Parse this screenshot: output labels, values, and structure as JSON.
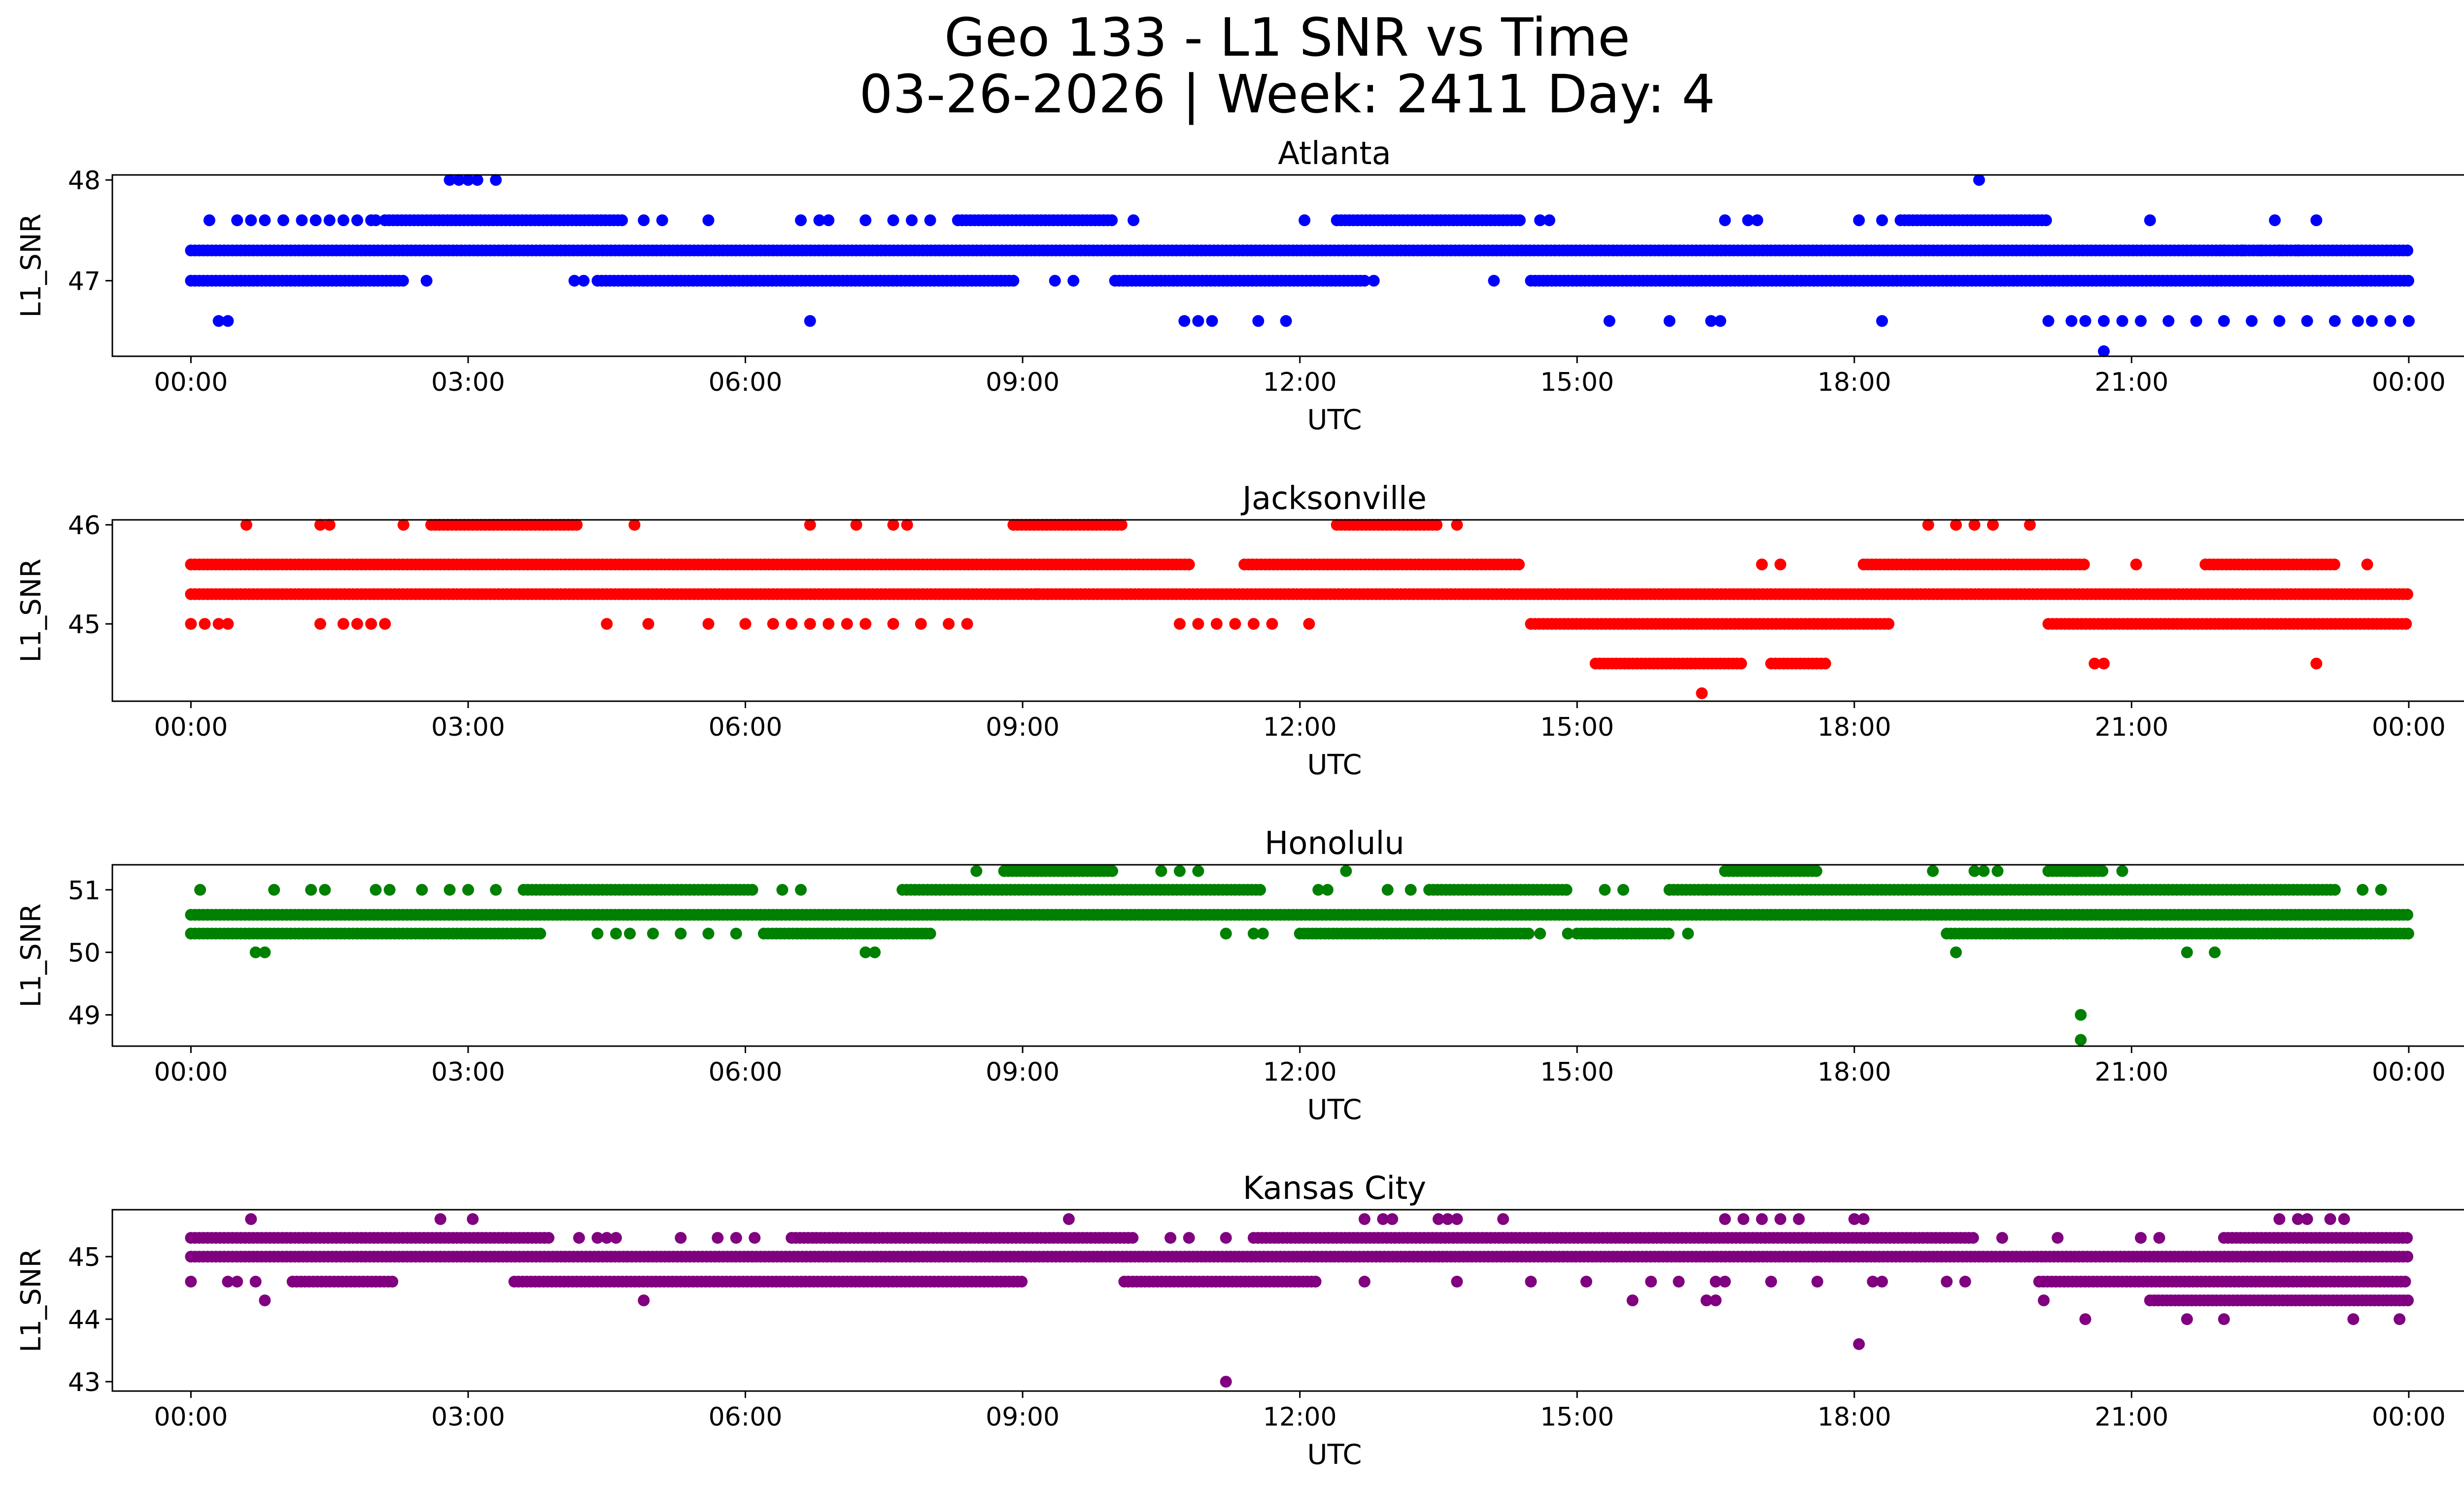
{
  "figure": {
    "title_line1": "Geo 133 - L1 SNR vs Time",
    "title_line2": "03-26-2026 | Week: 2411 Day: 4"
  },
  "chart_data": [
    {
      "type": "scatter",
      "title": "Atlanta",
      "xlabel": "UTC",
      "ylabel": "L1_SNR",
      "color": "#0000ff",
      "xlim_hours": [
        -0.85,
        25.6
      ],
      "ylim": [
        46.25,
        48.05
      ],
      "x_ticks": [
        0,
        3,
        6,
        9,
        12,
        15,
        18,
        21,
        24
      ],
      "x_tick_labels": [
        "00:00",
        "03:00",
        "06:00",
        "09:00",
        "12:00",
        "15:00",
        "18:00",
        "21:00",
        "00:00"
      ],
      "y_ticks": [
        47,
        48
      ],
      "y_tick_labels": [
        "47",
        "48"
      ],
      "bands": [
        {
          "y": 47.3,
          "segments": [
            [
              0.0,
              24.0
            ]
          ]
        },
        {
          "y": 47.0,
          "segments": [
            [
              0.0,
              2.3
            ],
            [
              4.4,
              8.9
            ],
            [
              10.0,
              12.7
            ],
            [
              14.5,
              24.0
            ]
          ]
        },
        {
          "y": 47.6,
          "segments": [
            [
              2.1,
              4.7
            ],
            [
              8.3,
              10.0
            ],
            [
              12.4,
              14.4
            ],
            [
              18.5,
              20.1
            ]
          ]
        }
      ],
      "sparse": [
        {
          "y": 47.6,
          "x": [
            0.2,
            0.5,
            0.65,
            0.8,
            1.0,
            1.2,
            1.35,
            1.5,
            1.65,
            1.8,
            1.95,
            2.0,
            4.9,
            5.1,
            5.6,
            6.6,
            6.8,
            6.9,
            7.3,
            7.6,
            7.8,
            8.0,
            10.2,
            12.05,
            14.6,
            14.7,
            16.6,
            16.85,
            16.95,
            18.05,
            18.3,
            21.2,
            22.55,
            23.0
          ]
        },
        {
          "y": 47.0,
          "x": [
            2.55,
            4.15,
            4.25,
            9.35,
            9.55,
            12.8,
            14.1
          ]
        },
        {
          "y": 46.6,
          "x": [
            0.3,
            0.4,
            6.7,
            10.75,
            10.9,
            11.05,
            11.55,
            11.85,
            15.35,
            16.0,
            16.45,
            16.55,
            18.3,
            20.1,
            20.35,
            20.5,
            20.7,
            20.9,
            21.1,
            21.4,
            21.7,
            22.0,
            22.3,
            22.6,
            22.9,
            23.2,
            23.45,
            23.6,
            23.8,
            24.0
          ]
        },
        {
          "y": 47.3,
          "x": [
            22.0,
            22.2,
            22.4,
            22.6,
            22.8
          ]
        },
        {
          "y": 48.0,
          "x": [
            2.8,
            2.9,
            3.0,
            3.1,
            3.3,
            19.35
          ]
        },
        {
          "y": 46.3,
          "x": [
            20.7
          ]
        }
      ]
    },
    {
      "type": "scatter",
      "title": "Jacksonville",
      "xlabel": "UTC",
      "ylabel": "L1_SNR",
      "color": "#ff0000",
      "xlim_hours": [
        -0.85,
        25.6
      ],
      "ylim": [
        44.22,
        46.05
      ],
      "x_ticks": [
        0,
        3,
        6,
        9,
        12,
        15,
        18,
        21,
        24
      ],
      "x_tick_labels": [
        "00:00",
        "03:00",
        "06:00",
        "09:00",
        "12:00",
        "15:00",
        "18:00",
        "21:00",
        "00:00"
      ],
      "y_ticks": [
        45,
        46
      ],
      "y_tick_labels": [
        "45",
        "46"
      ],
      "bands": [
        {
          "y": 45.3,
          "segments": [
            [
              0.0,
              24.0
            ]
          ]
        },
        {
          "y": 45.6,
          "segments": [
            [
              0.0,
              10.8
            ],
            [
              11.4,
              14.4
            ],
            [
              18.1,
              20.5
            ],
            [
              21.8,
              23.2
            ]
          ]
        },
        {
          "y": 45.0,
          "segments": [
            [
              14.5,
              18.4
            ],
            [
              20.1,
              24.0
            ]
          ]
        },
        {
          "y": 46.0,
          "segments": [
            [
              2.6,
              4.2
            ],
            [
              8.9,
              10.1
            ],
            [
              12.4,
              13.5
            ]
          ]
        },
        {
          "y": 44.6,
          "segments": [
            [
              15.2,
              16.8
            ],
            [
              17.1,
              17.7
            ]
          ]
        }
      ],
      "sparse": [
        {
          "y": 45.0,
          "x": [
            0.0,
            0.15,
            0.3,
            0.4,
            1.4,
            1.65,
            1.8,
            1.95,
            2.1,
            4.5,
            4.95,
            5.6,
            6.0,
            6.3,
            6.5,
            6.7,
            6.9,
            7.1,
            7.3,
            7.6,
            7.9,
            8.2,
            8.4,
            10.7,
            10.9,
            11.1,
            11.3,
            11.5,
            11.7,
            12.1
          ],
          "extra": []
        },
        {
          "y": 46.0,
          "x": [
            0.6,
            1.4,
            1.5,
            2.3,
            4.8,
            6.7,
            7.2,
            7.6,
            7.75,
            13.7,
            18.8,
            19.1,
            19.3,
            19.5,
            19.9
          ]
        },
        {
          "y": 45.3,
          "x": [
            9.15
          ]
        },
        {
          "y": 45.6,
          "x": [
            17.0,
            17.2,
            21.05,
            23.55
          ]
        },
        {
          "y": 44.6,
          "x": [
            20.6,
            20.7,
            23.0
          ]
        },
        {
          "y": 44.3,
          "x": [
            16.35
          ]
        }
      ]
    },
    {
      "type": "scatter",
      "title": "Honolulu",
      "xlabel": "UTC",
      "ylabel": "L1_SNR",
      "color": "#008000",
      "xlim_hours": [
        -0.85,
        25.6
      ],
      "ylim": [
        48.5,
        51.4
      ],
      "x_ticks": [
        0,
        3,
        6,
        9,
        12,
        15,
        18,
        21,
        24
      ],
      "x_tick_labels": [
        "00:00",
        "03:00",
        "06:00",
        "09:00",
        "12:00",
        "15:00",
        "18:00",
        "21:00",
        "00:00"
      ],
      "y_ticks": [
        49,
        50,
        51
      ],
      "y_tick_labels": [
        "49",
        "50",
        "51"
      ],
      "bands": [
        {
          "y": 50.6,
          "segments": [
            [
              0.0,
              24.0
            ]
          ]
        },
        {
          "y": 50.3,
          "segments": [
            [
              0.0,
              3.8
            ],
            [
              6.2,
              8.0
            ],
            [
              12.0,
              14.5
            ],
            [
              15.0,
              16.0
            ],
            [
              19.0,
              24.0
            ]
          ]
        },
        {
          "y": 51.0,
          "segments": [
            [
              3.6,
              6.1
            ],
            [
              7.7,
              11.6
            ],
            [
              13.4,
              14.9
            ],
            [
              16.0,
              23.2
            ]
          ]
        },
        {
          "y": 51.3,
          "segments": [
            [
              8.8,
              10.0
            ],
            [
              16.6,
              17.6
            ],
            [
              20.1,
              20.7
            ]
          ]
        }
      ],
      "sparse": [
        {
          "y": 51.0,
          "x": [
            0.1,
            0.9,
            1.3,
            1.45,
            2.0,
            2.15,
            2.5,
            2.8,
            3.0,
            3.3,
            6.4,
            6.6,
            12.2,
            12.3,
            12.95,
            13.2,
            15.3,
            15.5,
            16.0,
            16.4,
            23.5,
            23.7
          ]
        },
        {
          "y": 50.3,
          "x": [
            4.4,
            4.6,
            4.75,
            5.0,
            5.3,
            5.6,
            5.9,
            11.2,
            11.5,
            11.6,
            14.6,
            14.9,
            15.2,
            16.2,
            20.9,
            21.1
          ]
        },
        {
          "y": 51.3,
          "x": [
            8.5,
            10.5,
            10.7,
            10.9,
            12.5,
            18.85,
            19.3,
            19.4,
            19.55,
            20.4,
            20.9
          ]
        },
        {
          "y": 50.0,
          "x": [
            0.7,
            0.8,
            7.3,
            7.4,
            19.1,
            21.6,
            21.9
          ]
        },
        {
          "y": 49.0,
          "x": [
            20.45
          ]
        },
        {
          "y": 48.6,
          "x": [
            20.45
          ]
        }
      ]
    },
    {
      "type": "scatter",
      "title": "Kansas City",
      "xlabel": "UTC",
      "ylabel": "L1_SNR",
      "color": "#800080",
      "xlim_hours": [
        -0.85,
        25.6
      ],
      "ylim": [
        42.85,
        45.75
      ],
      "x_ticks": [
        0,
        3,
        6,
        9,
        12,
        15,
        18,
        21,
        24
      ],
      "x_tick_labels": [
        "00:00",
        "03:00",
        "06:00",
        "09:00",
        "12:00",
        "15:00",
        "18:00",
        "21:00",
        "00:00"
      ],
      "y_ticks": [
        43,
        44,
        45
      ],
      "y_tick_labels": [
        "43",
        "44",
        "45"
      ],
      "bands": [
        {
          "y": 45.0,
          "segments": [
            [
              0.0,
              24.0
            ]
          ]
        },
        {
          "y": 45.3,
          "segments": [
            [
              0.0,
              3.9
            ],
            [
              6.5,
              10.2
            ],
            [
              11.5,
              19.3
            ],
            [
              22.0,
              24.0
            ]
          ]
        },
        {
          "y": 44.6,
          "segments": [
            [
              1.1,
              2.2
            ],
            [
              3.5,
              9.0
            ],
            [
              10.1,
              12.2
            ],
            [
              20.0,
              24.0
            ]
          ]
        },
        {
          "y": 44.3,
          "segments": [
            [
              21.2,
              24.0
            ]
          ]
        }
      ],
      "sparse": [
        {
          "y": 45.3,
          "x": [
            4.2,
            4.4,
            4.5,
            4.6,
            5.3,
            5.7,
            5.9,
            6.1,
            10.6,
            10.8,
            11.2,
            19.6,
            20.2,
            21.1,
            21.3
          ]
        },
        {
          "y": 44.6,
          "x": [
            0.0,
            0.4,
            0.5,
            0.7,
            15.8,
            16.1,
            16.5,
            16.6,
            17.1,
            17.6,
            18.2,
            18.3,
            19.0,
            19.2,
            12.7,
            13.7,
            14.5,
            15.1
          ]
        },
        {
          "y": 45.6,
          "x": [
            0.65,
            2.7,
            3.05,
            9.5,
            12.7,
            12.9,
            13.0,
            13.5,
            13.6,
            13.7,
            14.2,
            16.6,
            16.8,
            17.0,
            17.2,
            17.4,
            18.0,
            18.1,
            22.6,
            22.8,
            22.9,
            23.15,
            23.3
          ]
        },
        {
          "y": 44.3,
          "x": [
            0.8,
            4.9,
            15.6,
            16.4,
            16.5,
            20.05
          ]
        },
        {
          "y": 44.0,
          "x": [
            20.5,
            21.6,
            22.0,
            23.4,
            23.9
          ]
        },
        {
          "y": 43.6,
          "x": [
            18.05
          ]
        },
        {
          "y": 43.0,
          "x": [
            11.2
          ]
        }
      ]
    }
  ]
}
